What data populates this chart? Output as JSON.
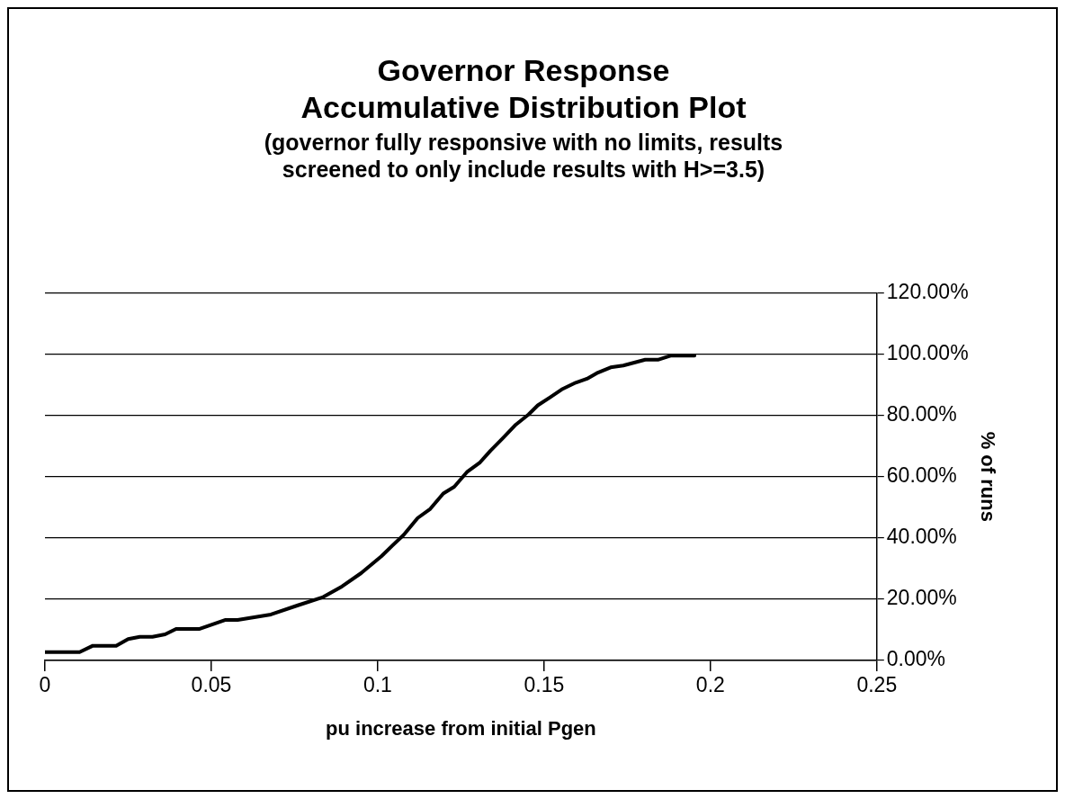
{
  "chart_data": {
    "type": "line",
    "title": "Governor Response\nAccumulative Distribution Plot",
    "subtitle": "(governor fully responsive with no limits, results\nscreened to only include results with H>=3.5)",
    "xlabel": "pu increase from initial Pgen",
    "ylabel": "% of runs",
    "x": [
      0,
      0.0104,
      0.0144,
      0.0214,
      0.025,
      0.0285,
      0.0323,
      0.0361,
      0.0394,
      0.0465,
      0.0541,
      0.0579,
      0.0679,
      0.076,
      0.0836,
      0.0893,
      0.095,
      0.1011,
      0.1044,
      0.1078,
      0.112,
      0.1158,
      0.1197,
      0.123,
      0.1268,
      0.1306,
      0.1339,
      0.1377,
      0.1415,
      0.1453,
      0.1481,
      0.1519,
      0.1553,
      0.1595,
      0.1629,
      0.1662,
      0.17,
      0.1738,
      0.1804,
      0.1842,
      0.188,
      0.1952
    ],
    "series": [
      {
        "color": "#000000",
        "values": [
          2.7,
          2.7,
          4.8,
          4.8,
          7.0,
          7.7,
          7.7,
          8.5,
          10.3,
          10.3,
          13.2,
          13.2,
          15.0,
          18.0,
          20.7,
          24.2,
          28.5,
          34,
          37.5,
          41,
          46.5,
          49.5,
          54.5,
          56.7,
          61.5,
          64.5,
          68.5,
          72.7,
          77,
          80.3,
          83.3,
          86,
          88.5,
          90.7,
          92,
          94,
          95.7,
          96.3,
          98.2,
          98.2,
          99.5,
          99.5
        ]
      }
    ],
    "xlim": [
      0,
      0.25
    ],
    "xticks": [
      0,
      0.05,
      0.1,
      0.15,
      0.2,
      0.25
    ],
    "ylim": [
      0,
      120
    ],
    "yticks": [
      {
        "value": 0,
        "label": "0.00%"
      },
      {
        "value": 20,
        "label": "20.00%"
      },
      {
        "value": 40,
        "label": "40.00%"
      },
      {
        "value": 60,
        "label": "60.00%"
      },
      {
        "value": 80,
        "label": "80.00%"
      },
      {
        "value": 100,
        "label": "100.00%"
      },
      {
        "value": 120,
        "label": "120.00%"
      }
    ],
    "grid": "y",
    "legend": false,
    "marker": "none",
    "line_style": "solid"
  }
}
